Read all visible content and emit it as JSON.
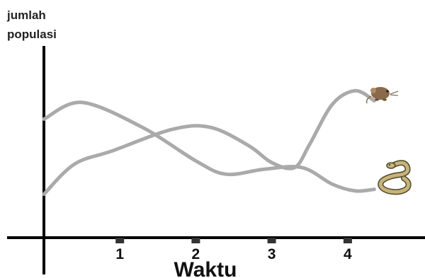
{
  "chart_data": {
    "type": "line",
    "title": "",
    "ylabel": [
      "jumlah",
      "populasi"
    ],
    "xlabel": "Waktu",
    "x_ticks": [
      "1",
      "2",
      "3",
      "4"
    ],
    "xlim": [
      0,
      4.85
    ],
    "ylim": [
      0,
      1
    ],
    "grid": false,
    "legend": "icons at the right end of each line",
    "series": [
      {
        "icon": "mouse-icon",
        "color": "#aaaaaa",
        "x": [
          0,
          0.4,
          0.9,
          1.7,
          2.2,
          2.7,
          3.0,
          3.3,
          3.5,
          3.8,
          4.1,
          4.35
        ],
        "y": [
          0.26,
          0.44,
          0.52,
          0.65,
          0.66,
          0.55,
          0.45,
          0.42,
          0.56,
          0.8,
          0.88,
          0.82
        ]
      },
      {
        "icon": "snake-icon",
        "color": "#aaaaaa",
        "x": [
          0,
          0.5,
          1.3,
          2.0,
          2.4,
          2.9,
          3.4,
          3.8,
          4.1,
          4.35
        ],
        "y": [
          0.71,
          0.81,
          0.66,
          0.46,
          0.38,
          0.41,
          0.42,
          0.32,
          0.28,
          0.29
        ]
      }
    ]
  }
}
